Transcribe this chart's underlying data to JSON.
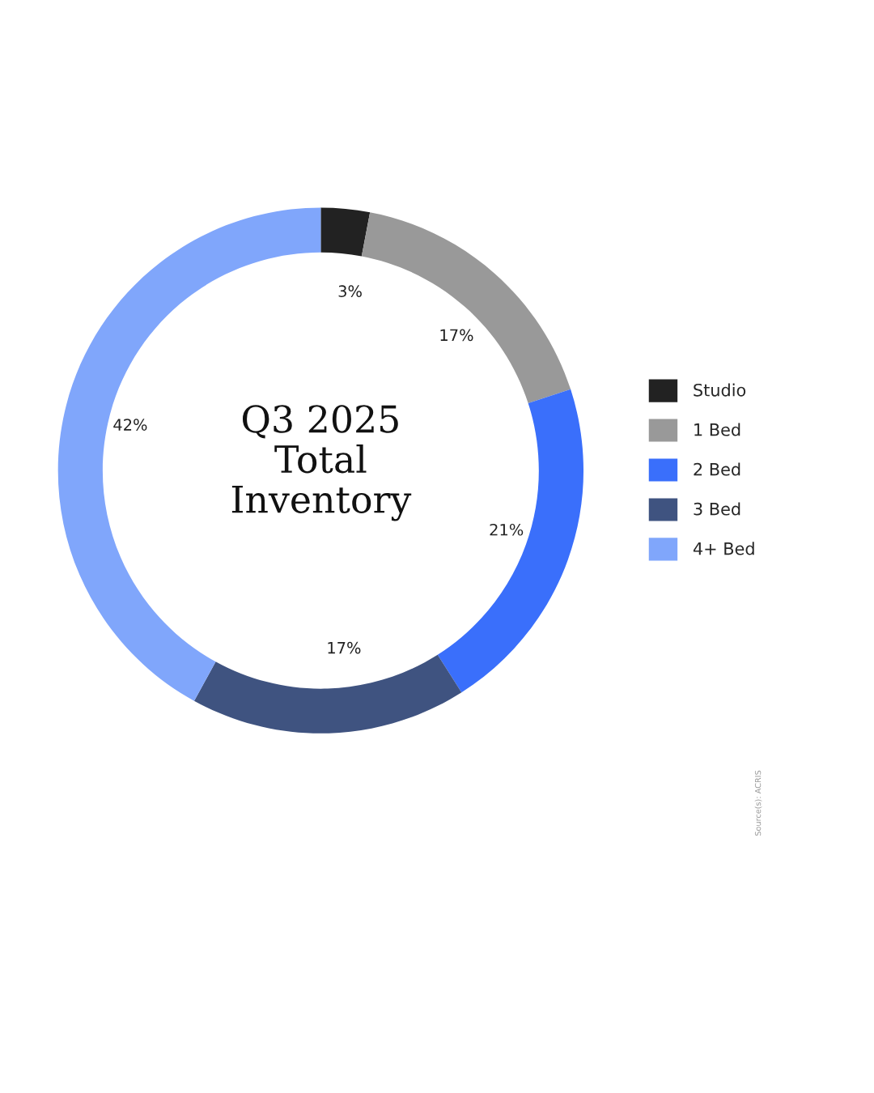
{
  "chart_data": {
    "type": "donut",
    "title": "Q3 2025\nTotal\nInventory",
    "categories": [
      "Studio",
      "1 Bed",
      "2 Bed",
      "3 Bed",
      "4+ Bed"
    ],
    "values": [
      3,
      17,
      21,
      17,
      42
    ],
    "value_labels": [
      "3%",
      "17%",
      "21%",
      "17%",
      "42%"
    ],
    "colors": [
      "#222222",
      "#999999",
      "#3a6ffb",
      "#3f5380",
      "#80a6fb"
    ],
    "legend": "right",
    "annotations": [
      "Source(s): ACRIS"
    ]
  }
}
